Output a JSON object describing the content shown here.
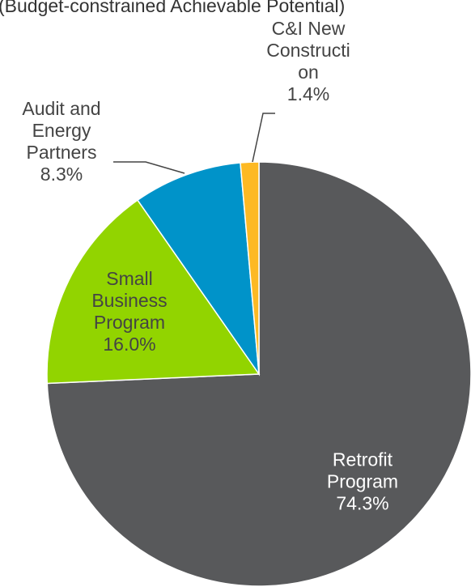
{
  "chart_data": {
    "type": "pie",
    "subtitle": "(Budget-constrained Achievable Potential)",
    "categories": [
      "Retrofit Program",
      "Small Business Program",
      "Audit and Energy Partners",
      "C&I New Construction"
    ],
    "values": [
      74.3,
      16.0,
      8.3,
      1.4
    ],
    "value_labels": [
      "74.3%",
      "16.0%",
      "8.3%",
      "1.4%"
    ],
    "colors": [
      "#58595b",
      "#92d400",
      "#0093c9",
      "#fdb924"
    ]
  }
}
